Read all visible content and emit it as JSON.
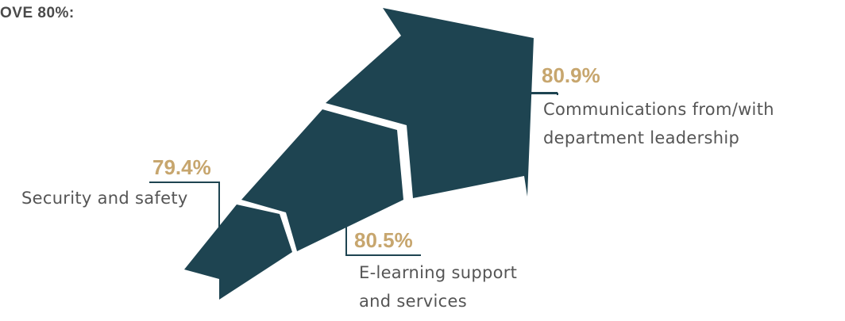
{
  "heading": "OVE 80%:",
  "colors": {
    "arrow": "#1e4451",
    "percent": "#c7a66e",
    "label": "#555555",
    "leader": "#1e4451"
  },
  "items": [
    {
      "value": "80.9%",
      "label_line1": "Communications from/with",
      "label_line2": "department leadership"
    },
    {
      "value": "79.4%",
      "label": "Security and safety"
    },
    {
      "value": "80.5%",
      "label_line1": "E-learning support",
      "label_line2": "and services"
    }
  ]
}
